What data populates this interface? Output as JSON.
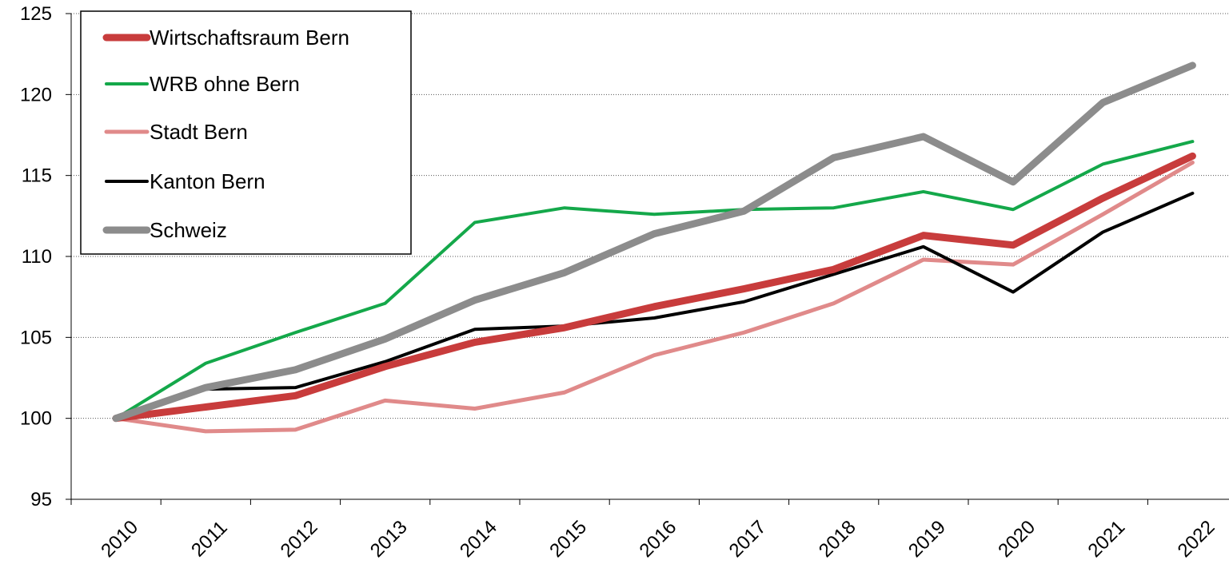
{
  "chart_data": {
    "type": "line",
    "title": "",
    "xlabel": "",
    "ylabel": "",
    "x": [
      "2010",
      "2011",
      "2012",
      "2013",
      "2014",
      "2015",
      "2016",
      "2017",
      "2018",
      "2019",
      "2020",
      "2021",
      "2022"
    ],
    "ylim": [
      95,
      125
    ],
    "yticks": [
      95,
      100,
      105,
      110,
      115,
      120,
      125
    ],
    "grid": "horizontal-dotted",
    "legend_placement": "top-left",
    "series": [
      {
        "name": "Wirtschaftsraum Bern",
        "color": "#c83c3c",
        "width": 9,
        "values": [
          100,
          100.7,
          101.4,
          103.2,
          104.7,
          105.6,
          106.9,
          108.0,
          109.2,
          111.3,
          110.7,
          113.6,
          116.2
        ]
      },
      {
        "name": "WRB ohne Bern",
        "color": "#14a84a",
        "width": 4,
        "values": [
          100,
          103.4,
          105.3,
          107.1,
          112.1,
          113.0,
          112.6,
          112.9,
          113.0,
          114.0,
          112.9,
          115.7,
          117.1
        ]
      },
      {
        "name": "Stadt Bern",
        "color": "#e08a8a",
        "width": 5,
        "values": [
          100,
          99.2,
          99.3,
          101.1,
          100.6,
          101.6,
          103.9,
          105.3,
          107.1,
          109.8,
          109.5,
          112.6,
          115.8
        ]
      },
      {
        "name": "Kanton Bern",
        "color": "#000000",
        "width": 4,
        "values": [
          100,
          101.8,
          101.9,
          103.5,
          105.5,
          105.7,
          106.2,
          107.2,
          108.9,
          110.6,
          107.8,
          111.5,
          113.9
        ]
      },
      {
        "name": "Schweiz",
        "color": "#8c8c8c",
        "width": 9,
        "values": [
          100,
          101.9,
          103.0,
          104.9,
          107.3,
          109.0,
          111.4,
          112.8,
          116.1,
          117.4,
          114.6,
          119.5,
          121.8
        ]
      }
    ]
  }
}
